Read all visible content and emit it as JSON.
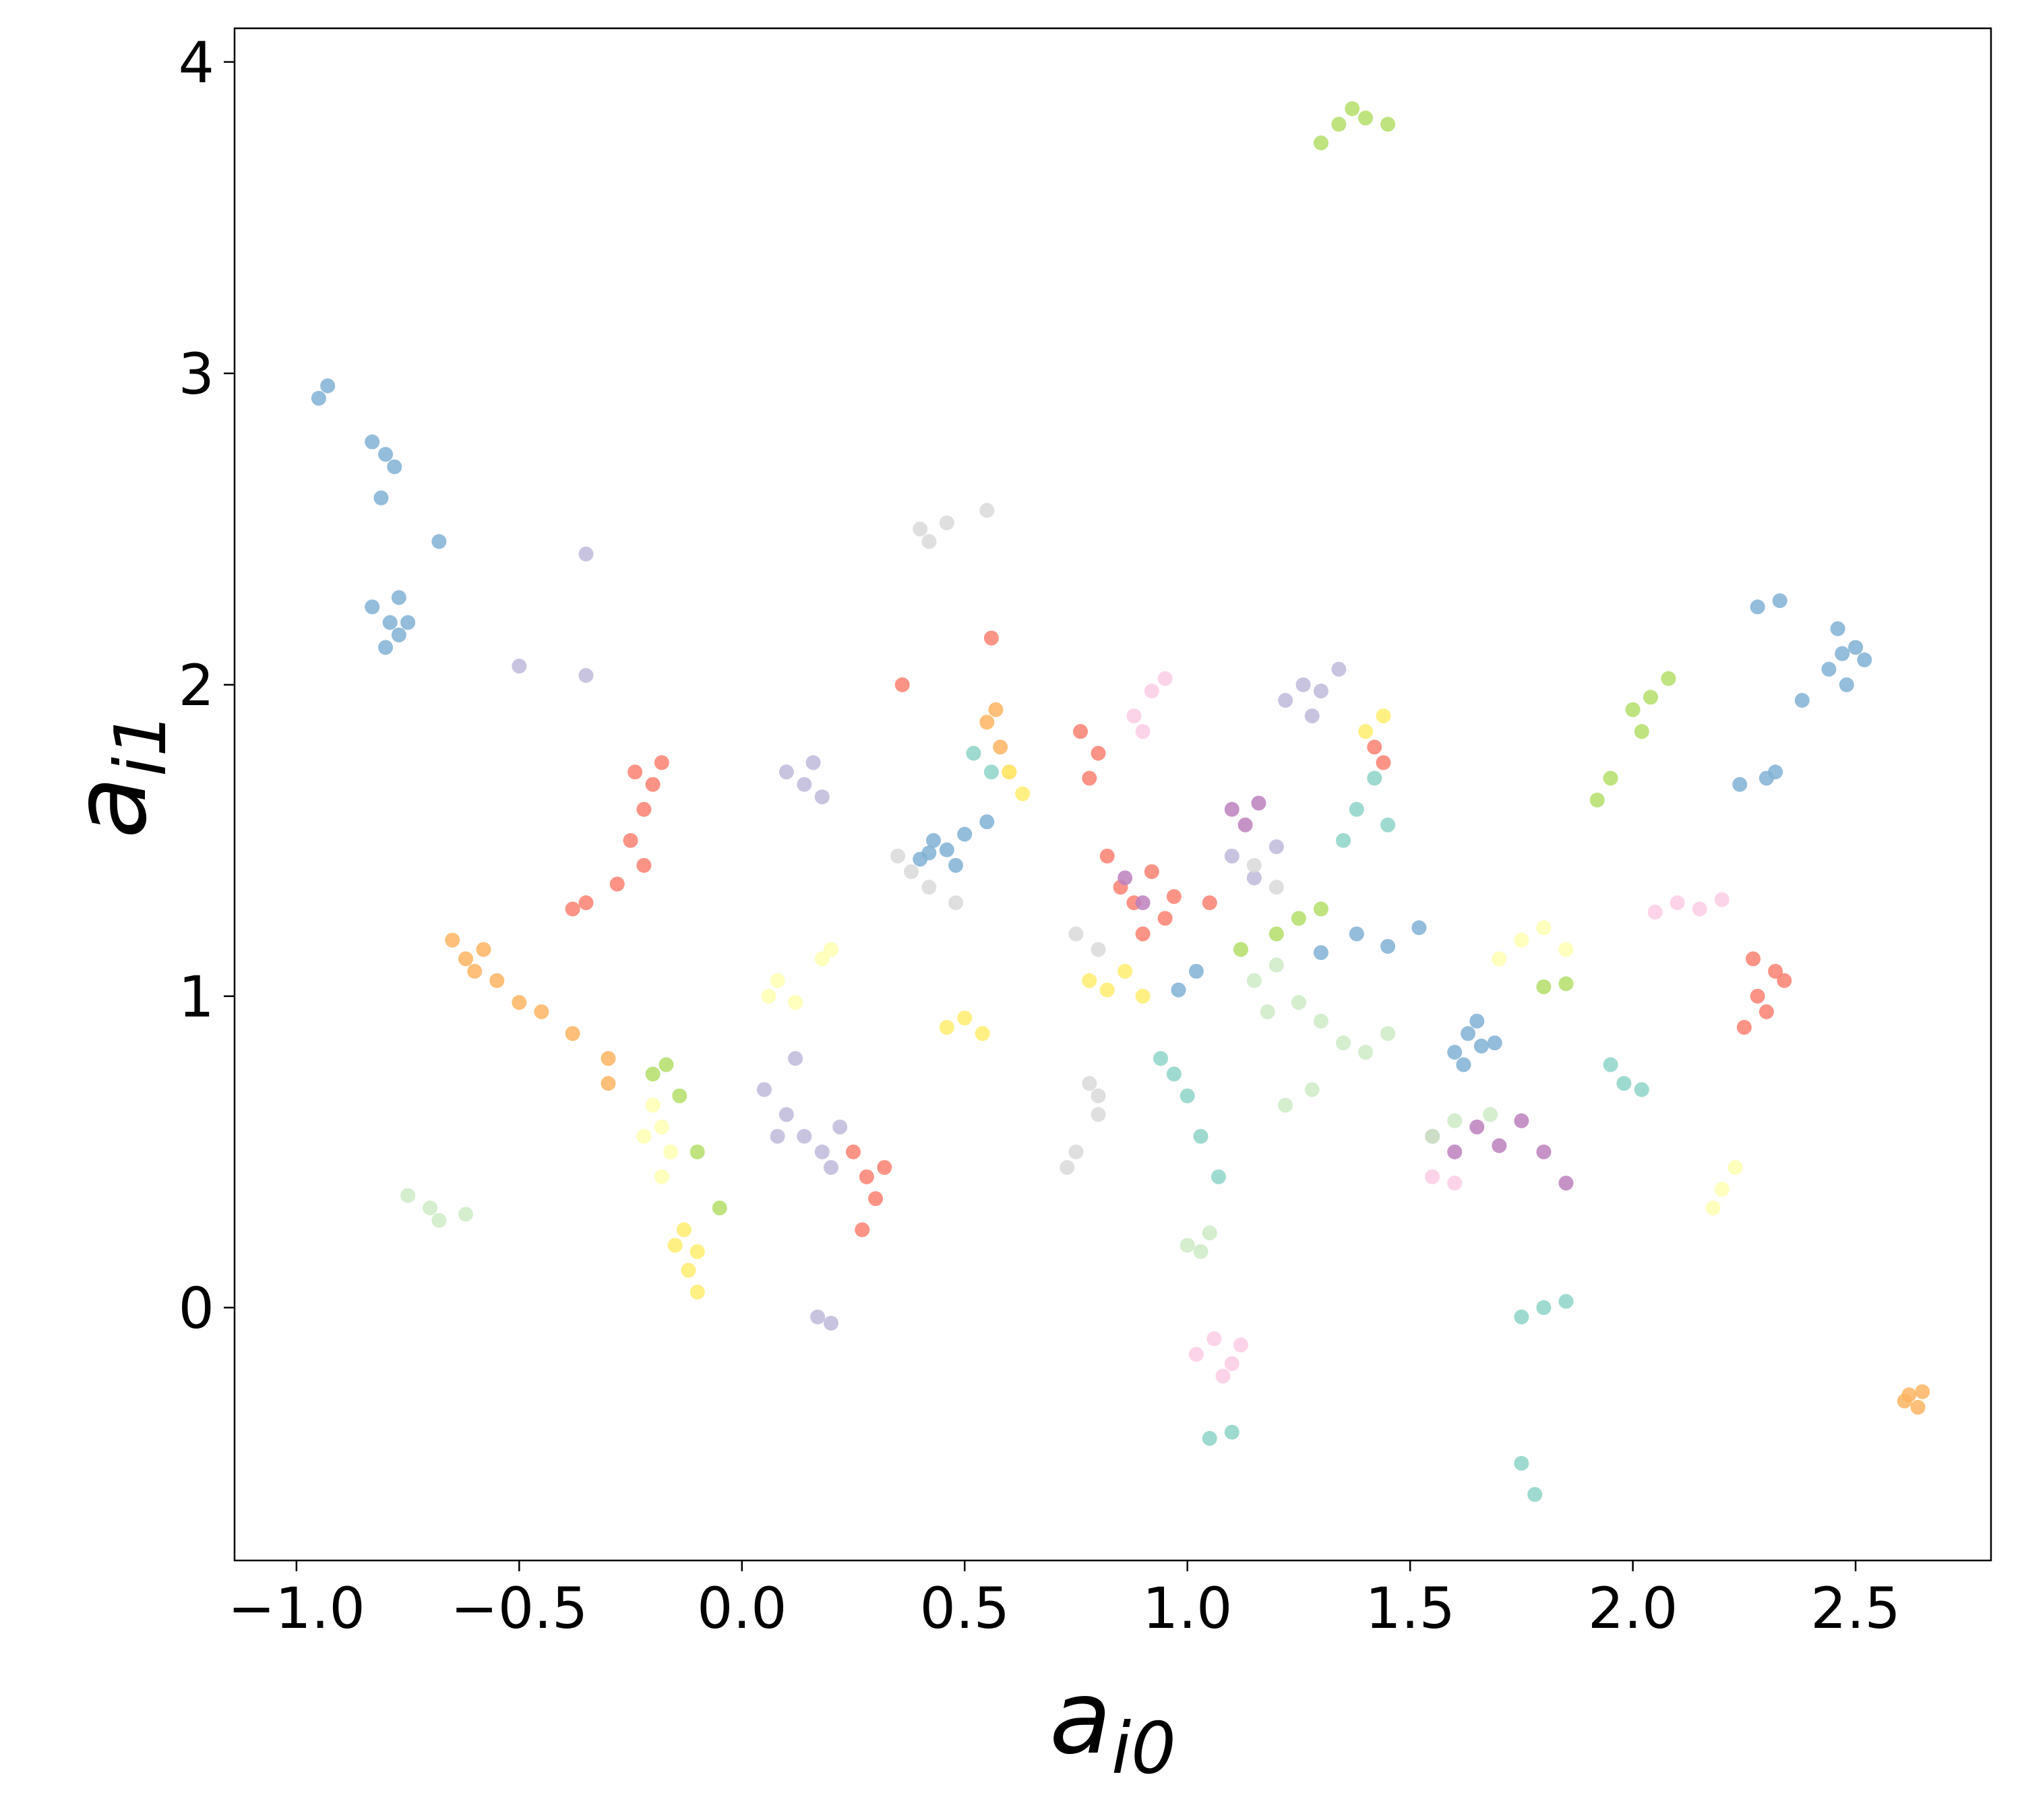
{
  "chart_data": {
    "type": "scatter",
    "xlabel": {
      "base": "a",
      "sub": "i0"
    },
    "ylabel": {
      "base": "a",
      "sub": "i1"
    },
    "xlim": [
      -1.139,
      2.804
    ],
    "ylim": [
      -0.812,
      4.108
    ],
    "xticks": [
      {
        "value": -1,
        "label": "−1.0"
      },
      {
        "value": -0.5,
        "label": "−0.5"
      },
      {
        "value": 0,
        "label": "0.0"
      },
      {
        "value": 0.5,
        "label": "0.5"
      },
      {
        "value": 1,
        "label": "1.0"
      },
      {
        "value": 1.5,
        "label": "1.5"
      },
      {
        "value": 2,
        "label": "2.0"
      },
      {
        "value": 2.5,
        "label": "2.5"
      }
    ],
    "yticks": [
      0,
      1,
      2,
      3,
      4
    ],
    "grid": false,
    "series": [
      {
        "color": "#80b1d3",
        "x": [
          -0.95,
          -0.93,
          -0.83,
          -0.8,
          -0.78,
          -0.81,
          -0.79,
          -0.77,
          -0.83,
          -0.8,
          -0.77,
          -0.75,
          -0.68,
          0.4,
          0.43,
          0.46,
          0.5,
          0.48,
          0.42,
          0.55,
          1.6,
          1.63,
          1.66,
          1.62,
          1.65,
          1.69,
          2.44,
          2.47,
          2.5,
          2.48,
          2.46,
          2.52,
          2.38,
          2.32,
          2.28,
          2.24,
          2.3,
          2.33,
          1.3,
          1.38,
          1.45,
          1.52,
          0.98,
          1.02
        ],
        "values": [
          2.92,
          2.96,
          2.78,
          2.74,
          2.7,
          2.6,
          2.2,
          2.16,
          2.25,
          2.12,
          2.28,
          2.2,
          2.46,
          1.44,
          1.5,
          1.47,
          1.52,
          1.42,
          1.46,
          1.56,
          0.82,
          0.88,
          0.84,
          0.78,
          0.92,
          0.85,
          2.05,
          2.1,
          2.12,
          2.0,
          2.18,
          2.08,
          1.95,
          1.72,
          2.25,
          1.68,
          1.7,
          2.27,
          1.14,
          1.2,
          1.16,
          1.22,
          1.02,
          1.08
        ]
      },
      {
        "color": "#fb8072",
        "x": [
          -0.24,
          -0.2,
          -0.22,
          -0.18,
          -0.25,
          -0.22,
          -0.28,
          -0.35,
          -0.38,
          0.25,
          0.28,
          0.3,
          0.27,
          0.32,
          0.85,
          0.88,
          0.92,
          0.95,
          0.9,
          0.82,
          0.97,
          1.05,
          0.76,
          0.8,
          0.78,
          2.28,
          2.3,
          2.32,
          2.25,
          2.34,
          2.27,
          1.42,
          1.44,
          0.56,
          0.36
        ],
        "values": [
          1.72,
          1.68,
          1.6,
          1.75,
          1.5,
          1.42,
          1.36,
          1.3,
          1.28,
          0.5,
          0.42,
          0.35,
          0.25,
          0.45,
          1.35,
          1.3,
          1.4,
          1.25,
          1.2,
          1.45,
          1.32,
          1.3,
          1.85,
          1.78,
          1.7,
          1.0,
          0.95,
          1.08,
          0.9,
          1.05,
          1.12,
          1.8,
          1.75,
          2.15,
          2.0
        ]
      },
      {
        "color": "#bebada",
        "x": [
          0.1,
          0.14,
          0.18,
          0.16,
          0.05,
          0.1,
          0.14,
          0.18,
          0.22,
          0.12,
          0.2,
          0.08,
          1.22,
          1.26,
          1.3,
          1.34,
          1.28,
          1.1,
          1.15,
          1.2,
          -0.35,
          -0.5,
          -0.35,
          0.17,
          0.2
        ],
        "values": [
          1.72,
          1.68,
          1.64,
          1.75,
          0.7,
          0.62,
          0.55,
          0.5,
          0.58,
          0.8,
          0.45,
          0.55,
          1.95,
          2.0,
          1.98,
          2.05,
          1.9,
          1.45,
          1.38,
          1.48,
          2.42,
          2.06,
          2.03,
          -0.03,
          -0.05
        ]
      },
      {
        "color": "#fdb462",
        "x": [
          -0.65,
          -0.62,
          -0.6,
          -0.58,
          -0.55,
          -0.5,
          -0.45,
          -0.38,
          -0.3,
          -0.3,
          0.55,
          0.58,
          0.6,
          0.57,
          2.62,
          2.64,
          2.65,
          2.61
        ],
        "values": [
          1.18,
          1.12,
          1.08,
          1.15,
          1.05,
          0.98,
          0.95,
          0.88,
          0.8,
          0.72,
          1.88,
          1.8,
          1.72,
          1.92,
          -0.28,
          -0.32,
          -0.27,
          -0.3
        ]
      },
      {
        "color": "#b3de69",
        "x": [
          1.3,
          1.34,
          1.37,
          1.4,
          1.45,
          2.0,
          2.04,
          2.08,
          2.02,
          1.95,
          1.92,
          -0.2,
          -0.17,
          -0.14,
          -0.1,
          -0.05,
          1.12,
          1.2,
          1.25,
          1.3,
          1.8,
          1.85
        ],
        "values": [
          3.74,
          3.8,
          3.85,
          3.82,
          3.8,
          1.92,
          1.96,
          2.02,
          1.85,
          1.7,
          1.63,
          0.75,
          0.78,
          0.68,
          0.5,
          0.32,
          1.15,
          1.2,
          1.25,
          1.28,
          1.03,
          1.04
        ]
      },
      {
        "color": "#fccde5",
        "x": [
          0.88,
          0.92,
          0.95,
          0.9,
          2.05,
          2.1,
          2.15,
          2.2,
          1.02,
          1.06,
          1.1,
          1.08,
          1.12,
          1.55,
          1.6
        ],
        "values": [
          1.9,
          1.98,
          2.02,
          1.85,
          1.27,
          1.3,
          1.28,
          1.31,
          -0.15,
          -0.1,
          -0.18,
          -0.22,
          -0.12,
          0.42,
          0.4
        ]
      },
      {
        "color": "#d9d9d9",
        "x": [
          0.4,
          0.42,
          0.46,
          0.55,
          0.78,
          0.8,
          0.8,
          0.75,
          0.73,
          0.35,
          0.38,
          0.42,
          0.48,
          0.75,
          0.8,
          1.15,
          1.2
        ],
        "values": [
          2.5,
          2.46,
          2.52,
          2.56,
          0.72,
          0.68,
          0.62,
          0.5,
          0.45,
          1.45,
          1.4,
          1.35,
          1.3,
          1.2,
          1.15,
          1.42,
          1.35
        ]
      },
      {
        "color": "#bc80bd",
        "x": [
          1.55,
          1.6,
          1.65,
          1.7,
          1.75,
          1.8,
          1.1,
          1.13,
          1.16,
          0.86,
          0.9,
          1.85
        ],
        "values": [
          0.55,
          0.5,
          0.58,
          0.52,
          0.6,
          0.5,
          1.6,
          1.55,
          1.62,
          1.38,
          1.3,
          0.4
        ]
      },
      {
        "color": "#ccebc5",
        "x": [
          1.15,
          1.2,
          1.25,
          1.3,
          1.35,
          1.4,
          1.45,
          1.28,
          1.22,
          1.18,
          -0.75,
          -0.7,
          -0.68,
          -0.62,
          1.0,
          1.03,
          1.05,
          1.55,
          1.6,
          1.68
        ],
        "values": [
          1.05,
          1.1,
          0.98,
          0.92,
          0.85,
          0.82,
          0.88,
          0.7,
          0.65,
          0.95,
          0.36,
          0.32,
          0.28,
          0.3,
          0.2,
          0.18,
          0.24,
          0.55,
          0.6,
          0.62
        ]
      },
      {
        "color": "#ffffb3",
        "x": [
          -0.2,
          -0.18,
          -0.16,
          -0.22,
          -0.18,
          0.06,
          0.08,
          0.12,
          0.18,
          0.2,
          1.7,
          1.75,
          1.8,
          1.85,
          2.18,
          2.2,
          2.23
        ],
        "values": [
          0.65,
          0.58,
          0.5,
          0.55,
          0.42,
          1.0,
          1.05,
          0.98,
          1.12,
          1.15,
          1.12,
          1.18,
          1.22,
          1.15,
          0.32,
          0.38,
          0.45
        ]
      },
      {
        "color": "#ffed6f",
        "x": [
          -0.15,
          -0.12,
          -0.1,
          -0.13,
          -0.1,
          0.78,
          0.82,
          0.86,
          0.9,
          0.46,
          0.5,
          0.54,
          1.4,
          1.44,
          0.6,
          0.63
        ],
        "values": [
          0.2,
          0.12,
          0.05,
          0.25,
          0.18,
          1.05,
          1.02,
          1.08,
          1.0,
          0.9,
          0.93,
          0.88,
          1.85,
          1.9,
          1.72,
          1.65
        ]
      },
      {
        "color": "#8dd3c7",
        "x": [
          0.94,
          0.97,
          1.0,
          1.03,
          1.07,
          1.35,
          1.38,
          1.42,
          1.45,
          1.75,
          1.8,
          1.85,
          1.95,
          1.98,
          2.02,
          1.05,
          1.1,
          1.75,
          1.78,
          0.52,
          0.56
        ],
        "values": [
          0.8,
          0.75,
          0.68,
          0.55,
          0.42,
          1.5,
          1.6,
          1.7,
          1.55,
          -0.03,
          0.0,
          0.02,
          0.78,
          0.72,
          0.7,
          -0.42,
          -0.4,
          -0.5,
          -0.6,
          1.78,
          1.72
        ]
      }
    ]
  }
}
